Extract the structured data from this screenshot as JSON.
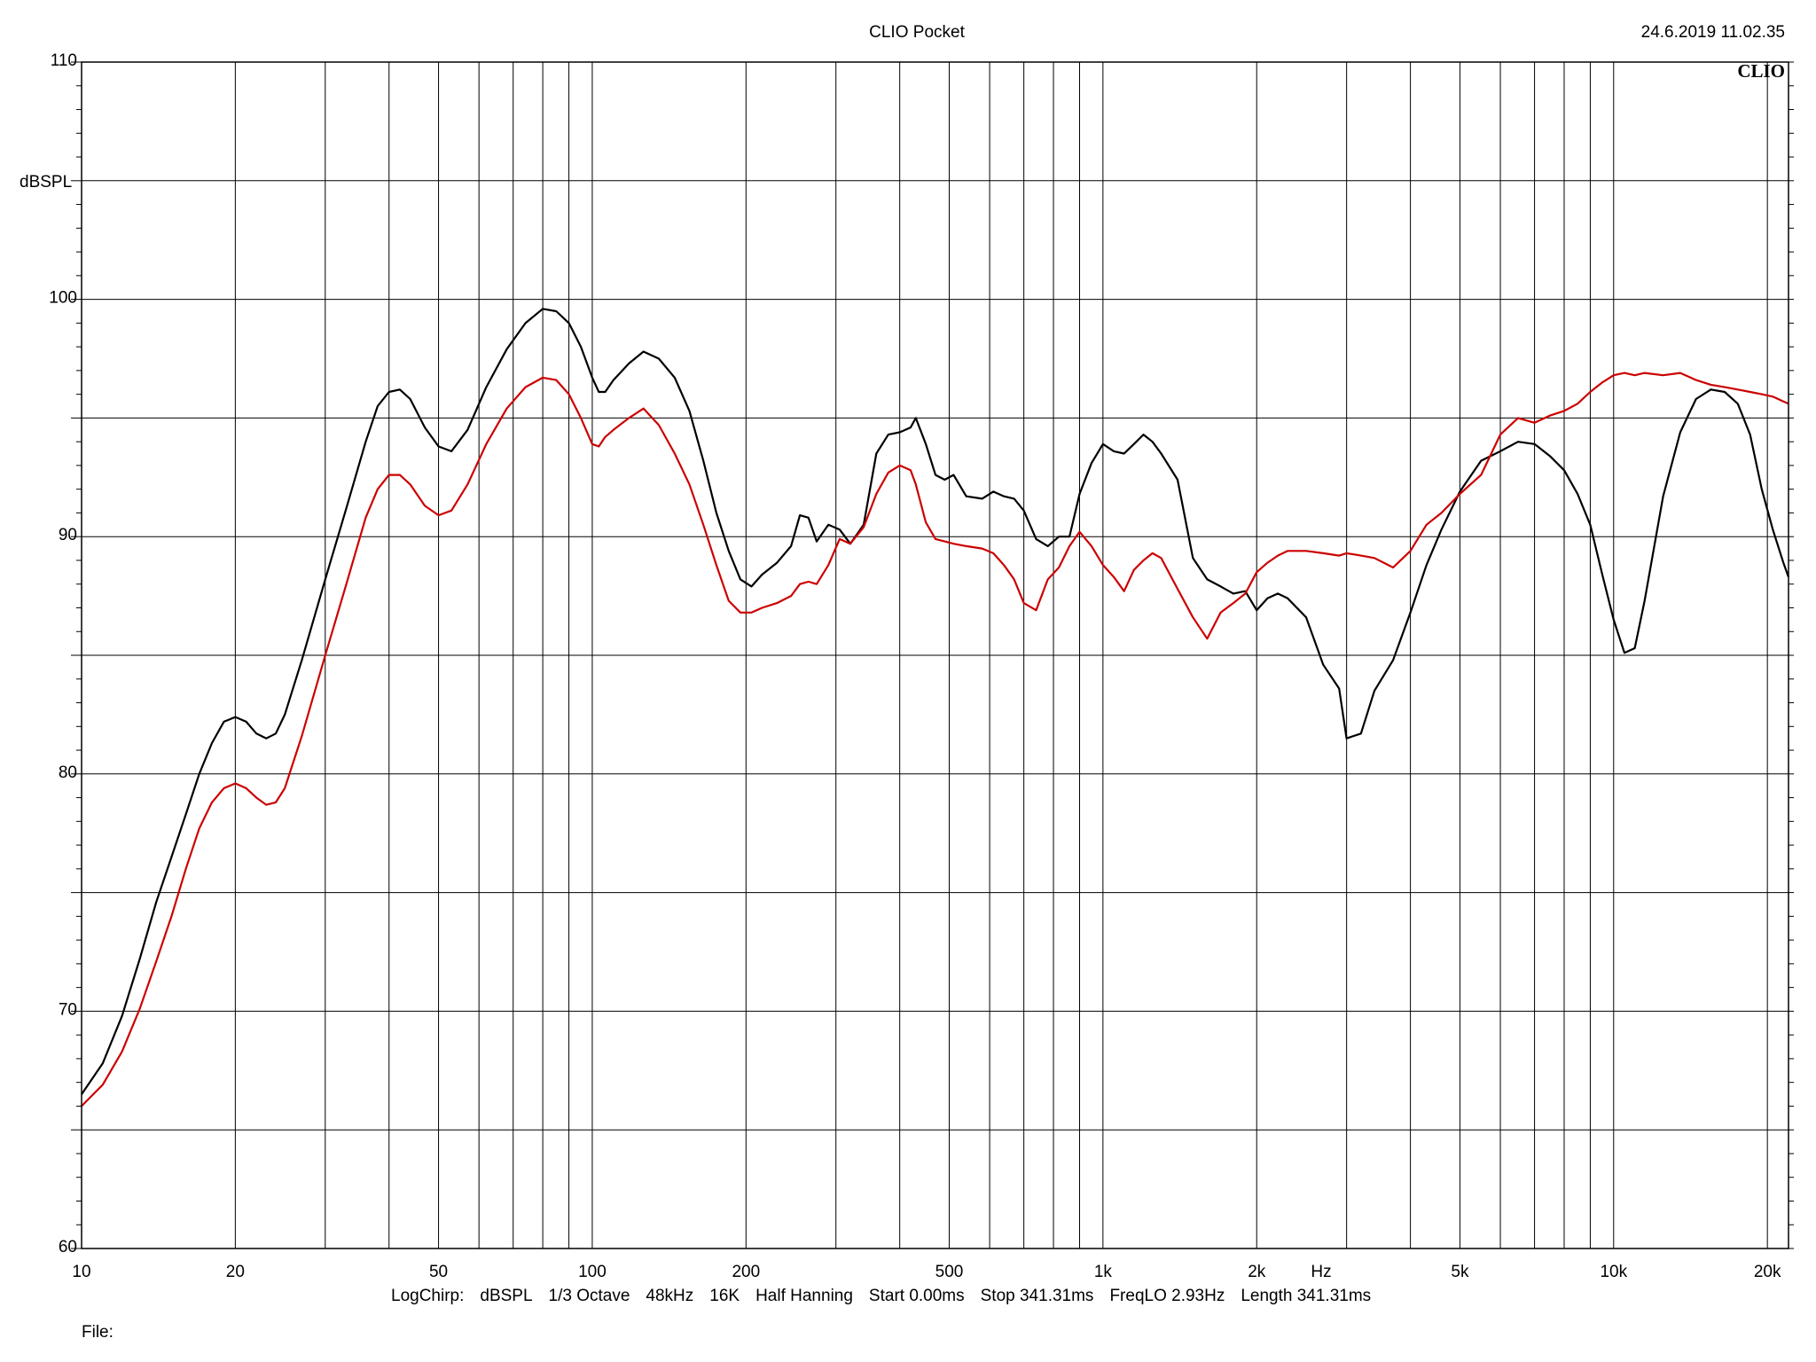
{
  "header": {
    "title": "CLIO Pocket",
    "timestamp": "24.6.2019 11.02.35",
    "brand": "CLIO"
  },
  "footer": {
    "params": [
      "LogChirp:",
      "dBSPL",
      "1/3 Octave",
      "48kHz",
      "16K",
      "Half Hanning",
      "Start 0.00ms",
      "Stop 341.31ms",
      "FreqLO 2.93Hz",
      "Length 341.31ms"
    ],
    "file_label": "File:"
  },
  "colors": {
    "background": "#ffffff",
    "grid": "#000000",
    "series_black": "#000000",
    "series_red": "#cc0000"
  },
  "chart_data": {
    "type": "line",
    "x_scale": "log",
    "y_scale": "linear",
    "grid": true,
    "xlim": [
      10,
      22000
    ],
    "ylim": [
      60,
      110
    ],
    "ylabel": "dBSPL",
    "xlabel": "Hz",
    "y_ticks": [
      60,
      70,
      80,
      90,
      100,
      110
    ],
    "y_tick_labels": [
      "60",
      "70",
      "80",
      "90",
      "100",
      "110"
    ],
    "x_tick_labels": [
      {
        "value": 10,
        "label": "10"
      },
      {
        "value": 20,
        "label": "20"
      },
      {
        "value": 50,
        "label": "50"
      },
      {
        "value": 100,
        "label": "100"
      },
      {
        "value": 200,
        "label": "200"
      },
      {
        "value": 500,
        "label": "500"
      },
      {
        "value": 1000,
        "label": "1k"
      },
      {
        "value": 2000,
        "label": "2k"
      },
      {
        "value": 5000,
        "label": "5k"
      },
      {
        "value": 10000,
        "label": "10k"
      },
      {
        "value": 20000,
        "label": "20k"
      }
    ],
    "series": [
      {
        "color": "#000000",
        "points": [
          [
            10,
            66.5
          ],
          [
            11,
            67.8
          ],
          [
            12,
            69.8
          ],
          [
            13,
            72.2
          ],
          [
            14,
            74.6
          ],
          [
            15,
            76.5
          ],
          [
            16,
            78.3
          ],
          [
            17,
            80.0
          ],
          [
            18,
            81.3
          ],
          [
            19,
            82.2
          ],
          [
            20,
            82.4
          ],
          [
            21,
            82.2
          ],
          [
            22,
            81.7
          ],
          [
            23,
            81.5
          ],
          [
            24,
            81.7
          ],
          [
            25,
            82.5
          ],
          [
            27,
            84.8
          ],
          [
            30,
            88.2
          ],
          [
            33,
            91.2
          ],
          [
            36,
            94.0
          ],
          [
            38,
            95.5
          ],
          [
            40,
            96.1
          ],
          [
            42,
            96.2
          ],
          [
            44,
            95.8
          ],
          [
            47,
            94.6
          ],
          [
            50,
            93.8
          ],
          [
            53,
            93.6
          ],
          [
            57,
            94.5
          ],
          [
            62,
            96.3
          ],
          [
            68,
            97.9
          ],
          [
            74,
            99.0
          ],
          [
            80,
            99.6
          ],
          [
            85,
            99.5
          ],
          [
            90,
            99.0
          ],
          [
            95,
            98.0
          ],
          [
            100,
            96.7
          ],
          [
            103,
            96.1
          ],
          [
            106,
            96.1
          ],
          [
            110,
            96.6
          ],
          [
            118,
            97.3
          ],
          [
            126,
            97.8
          ],
          [
            135,
            97.5
          ],
          [
            145,
            96.7
          ],
          [
            155,
            95.3
          ],
          [
            165,
            93.2
          ],
          [
            175,
            91.0
          ],
          [
            185,
            89.4
          ],
          [
            195,
            88.2
          ],
          [
            205,
            87.9
          ],
          [
            215,
            88.4
          ],
          [
            230,
            88.9
          ],
          [
            245,
            89.6
          ],
          [
            255,
            90.9
          ],
          [
            265,
            90.8
          ],
          [
            275,
            89.8
          ],
          [
            290,
            90.5
          ],
          [
            305,
            90.3
          ],
          [
            320,
            89.7
          ],
          [
            340,
            90.5
          ],
          [
            360,
            93.5
          ],
          [
            380,
            94.3
          ],
          [
            400,
            94.4
          ],
          [
            420,
            94.6
          ],
          [
            430,
            95.0
          ],
          [
            450,
            93.9
          ],
          [
            470,
            92.6
          ],
          [
            490,
            92.4
          ],
          [
            510,
            92.6
          ],
          [
            540,
            91.7
          ],
          [
            580,
            91.6
          ],
          [
            610,
            91.9
          ],
          [
            640,
            91.7
          ],
          [
            670,
            91.6
          ],
          [
            700,
            91.1
          ],
          [
            740,
            89.9
          ],
          [
            780,
            89.6
          ],
          [
            820,
            90.0
          ],
          [
            860,
            90.0
          ],
          [
            900,
            91.8
          ],
          [
            950,
            93.1
          ],
          [
            1000,
            93.9
          ],
          [
            1050,
            93.6
          ],
          [
            1100,
            93.5
          ],
          [
            1150,
            93.9
          ],
          [
            1200,
            94.3
          ],
          [
            1250,
            94.0
          ],
          [
            1300,
            93.5
          ],
          [
            1400,
            92.4
          ],
          [
            1500,
            89.1
          ],
          [
            1600,
            88.2
          ],
          [
            1700,
            87.9
          ],
          [
            1800,
            87.6
          ],
          [
            1900,
            87.7
          ],
          [
            2000,
            86.9
          ],
          [
            2100,
            87.4
          ],
          [
            2200,
            87.6
          ],
          [
            2300,
            87.4
          ],
          [
            2500,
            86.6
          ],
          [
            2700,
            84.6
          ],
          [
            2900,
            83.6
          ],
          [
            3000,
            81.5
          ],
          [
            3200,
            81.7
          ],
          [
            3400,
            83.5
          ],
          [
            3700,
            84.8
          ],
          [
            4000,
            86.8
          ],
          [
            4300,
            88.8
          ],
          [
            4600,
            90.3
          ],
          [
            5000,
            91.9
          ],
          [
            5500,
            93.2
          ],
          [
            6000,
            93.6
          ],
          [
            6500,
            94.0
          ],
          [
            7000,
            93.9
          ],
          [
            7500,
            93.4
          ],
          [
            8000,
            92.8
          ],
          [
            8500,
            91.8
          ],
          [
            9000,
            90.5
          ],
          [
            9500,
            88.4
          ],
          [
            10000,
            86.5
          ],
          [
            10500,
            85.1
          ],
          [
            11000,
            85.3
          ],
          [
            11500,
            87.3
          ],
          [
            12500,
            91.7
          ],
          [
            13500,
            94.4
          ],
          [
            14500,
            95.8
          ],
          [
            15500,
            96.2
          ],
          [
            16500,
            96.1
          ],
          [
            17500,
            95.6
          ],
          [
            18500,
            94.3
          ],
          [
            19500,
            92.0
          ],
          [
            20500,
            90.3
          ],
          [
            21500,
            88.9
          ],
          [
            22000,
            88.3
          ]
        ]
      },
      {
        "color": "#cc0000",
        "points": [
          [
            10,
            66.0
          ],
          [
            11,
            66.9
          ],
          [
            12,
            68.3
          ],
          [
            13,
            70.1
          ],
          [
            14,
            72.1
          ],
          [
            15,
            74.0
          ],
          [
            16,
            76.0
          ],
          [
            17,
            77.7
          ],
          [
            18,
            78.8
          ],
          [
            19,
            79.4
          ],
          [
            20,
            79.6
          ],
          [
            21,
            79.4
          ],
          [
            22,
            79.0
          ],
          [
            23,
            78.7
          ],
          [
            24,
            78.8
          ],
          [
            25,
            79.4
          ],
          [
            27,
            81.6
          ],
          [
            30,
            85.0
          ],
          [
            33,
            88.0
          ],
          [
            36,
            90.8
          ],
          [
            38,
            92.0
          ],
          [
            40,
            92.6
          ],
          [
            42,
            92.6
          ],
          [
            44,
            92.2
          ],
          [
            47,
            91.3
          ],
          [
            50,
            90.9
          ],
          [
            53,
            91.1
          ],
          [
            57,
            92.2
          ],
          [
            62,
            93.9
          ],
          [
            68,
            95.4
          ],
          [
            74,
            96.3
          ],
          [
            80,
            96.7
          ],
          [
            85,
            96.6
          ],
          [
            90,
            96.0
          ],
          [
            95,
            95.0
          ],
          [
            100,
            93.9
          ],
          [
            103,
            93.8
          ],
          [
            106,
            94.2
          ],
          [
            110,
            94.5
          ],
          [
            118,
            95.0
          ],
          [
            126,
            95.4
          ],
          [
            135,
            94.7
          ],
          [
            145,
            93.5
          ],
          [
            155,
            92.2
          ],
          [
            165,
            90.5
          ],
          [
            175,
            88.8
          ],
          [
            185,
            87.3
          ],
          [
            195,
            86.8
          ],
          [
            205,
            86.8
          ],
          [
            215,
            87.0
          ],
          [
            230,
            87.2
          ],
          [
            245,
            87.5
          ],
          [
            255,
            88.0
          ],
          [
            265,
            88.1
          ],
          [
            275,
            88.0
          ],
          [
            290,
            88.8
          ],
          [
            305,
            89.9
          ],
          [
            320,
            89.7
          ],
          [
            340,
            90.4
          ],
          [
            360,
            91.8
          ],
          [
            380,
            92.7
          ],
          [
            400,
            93.0
          ],
          [
            420,
            92.8
          ],
          [
            430,
            92.2
          ],
          [
            450,
            90.6
          ],
          [
            470,
            89.9
          ],
          [
            490,
            89.8
          ],
          [
            510,
            89.7
          ],
          [
            540,
            89.6
          ],
          [
            580,
            89.5
          ],
          [
            610,
            89.3
          ],
          [
            640,
            88.8
          ],
          [
            670,
            88.2
          ],
          [
            700,
            87.2
          ],
          [
            740,
            86.9
          ],
          [
            780,
            88.2
          ],
          [
            820,
            88.7
          ],
          [
            860,
            89.6
          ],
          [
            900,
            90.2
          ],
          [
            950,
            89.6
          ],
          [
            1000,
            88.8
          ],
          [
            1050,
            88.3
          ],
          [
            1100,
            87.7
          ],
          [
            1150,
            88.6
          ],
          [
            1200,
            89.0
          ],
          [
            1250,
            89.3
          ],
          [
            1300,
            89.1
          ],
          [
            1400,
            87.8
          ],
          [
            1500,
            86.6
          ],
          [
            1600,
            85.7
          ],
          [
            1700,
            86.8
          ],
          [
            1800,
            87.2
          ],
          [
            1900,
            87.6
          ],
          [
            2000,
            88.5
          ],
          [
            2100,
            88.9
          ],
          [
            2200,
            89.2
          ],
          [
            2300,
            89.4
          ],
          [
            2500,
            89.4
          ],
          [
            2700,
            89.3
          ],
          [
            2900,
            89.2
          ],
          [
            3000,
            89.3
          ],
          [
            3200,
            89.2
          ],
          [
            3400,
            89.1
          ],
          [
            3700,
            88.7
          ],
          [
            4000,
            89.4
          ],
          [
            4300,
            90.5
          ],
          [
            4600,
            91.0
          ],
          [
            5000,
            91.8
          ],
          [
            5500,
            92.6
          ],
          [
            6000,
            94.3
          ],
          [
            6500,
            95.0
          ],
          [
            7000,
            94.8
          ],
          [
            7500,
            95.1
          ],
          [
            8000,
            95.3
          ],
          [
            8500,
            95.6
          ],
          [
            9000,
            96.1
          ],
          [
            9500,
            96.5
          ],
          [
            10000,
            96.8
          ],
          [
            10500,
            96.9
          ],
          [
            11000,
            96.8
          ],
          [
            11500,
            96.9
          ],
          [
            12500,
            96.8
          ],
          [
            13500,
            96.9
          ],
          [
            14500,
            96.6
          ],
          [
            15500,
            96.4
          ],
          [
            16500,
            96.3
          ],
          [
            17500,
            96.2
          ],
          [
            18500,
            96.1
          ],
          [
            19500,
            96.0
          ],
          [
            20500,
            95.9
          ],
          [
            21500,
            95.7
          ],
          [
            22000,
            95.6
          ]
        ]
      }
    ]
  }
}
